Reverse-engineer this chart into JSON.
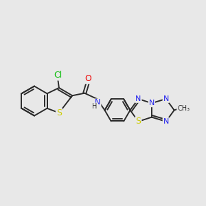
{
  "bg_color": "#e8e8e8",
  "bond_color": "#2a2a2a",
  "bond_width": 1.4,
  "atom_colors": {
    "Cl": "#00bb00",
    "S": "#cccc00",
    "O": "#ee0000",
    "N": "#2222ee",
    "C": "#2a2a2a",
    "H": "#2a2a2a"
  },
  "figsize": [
    3.0,
    3.0
  ],
  "dpi": 100
}
